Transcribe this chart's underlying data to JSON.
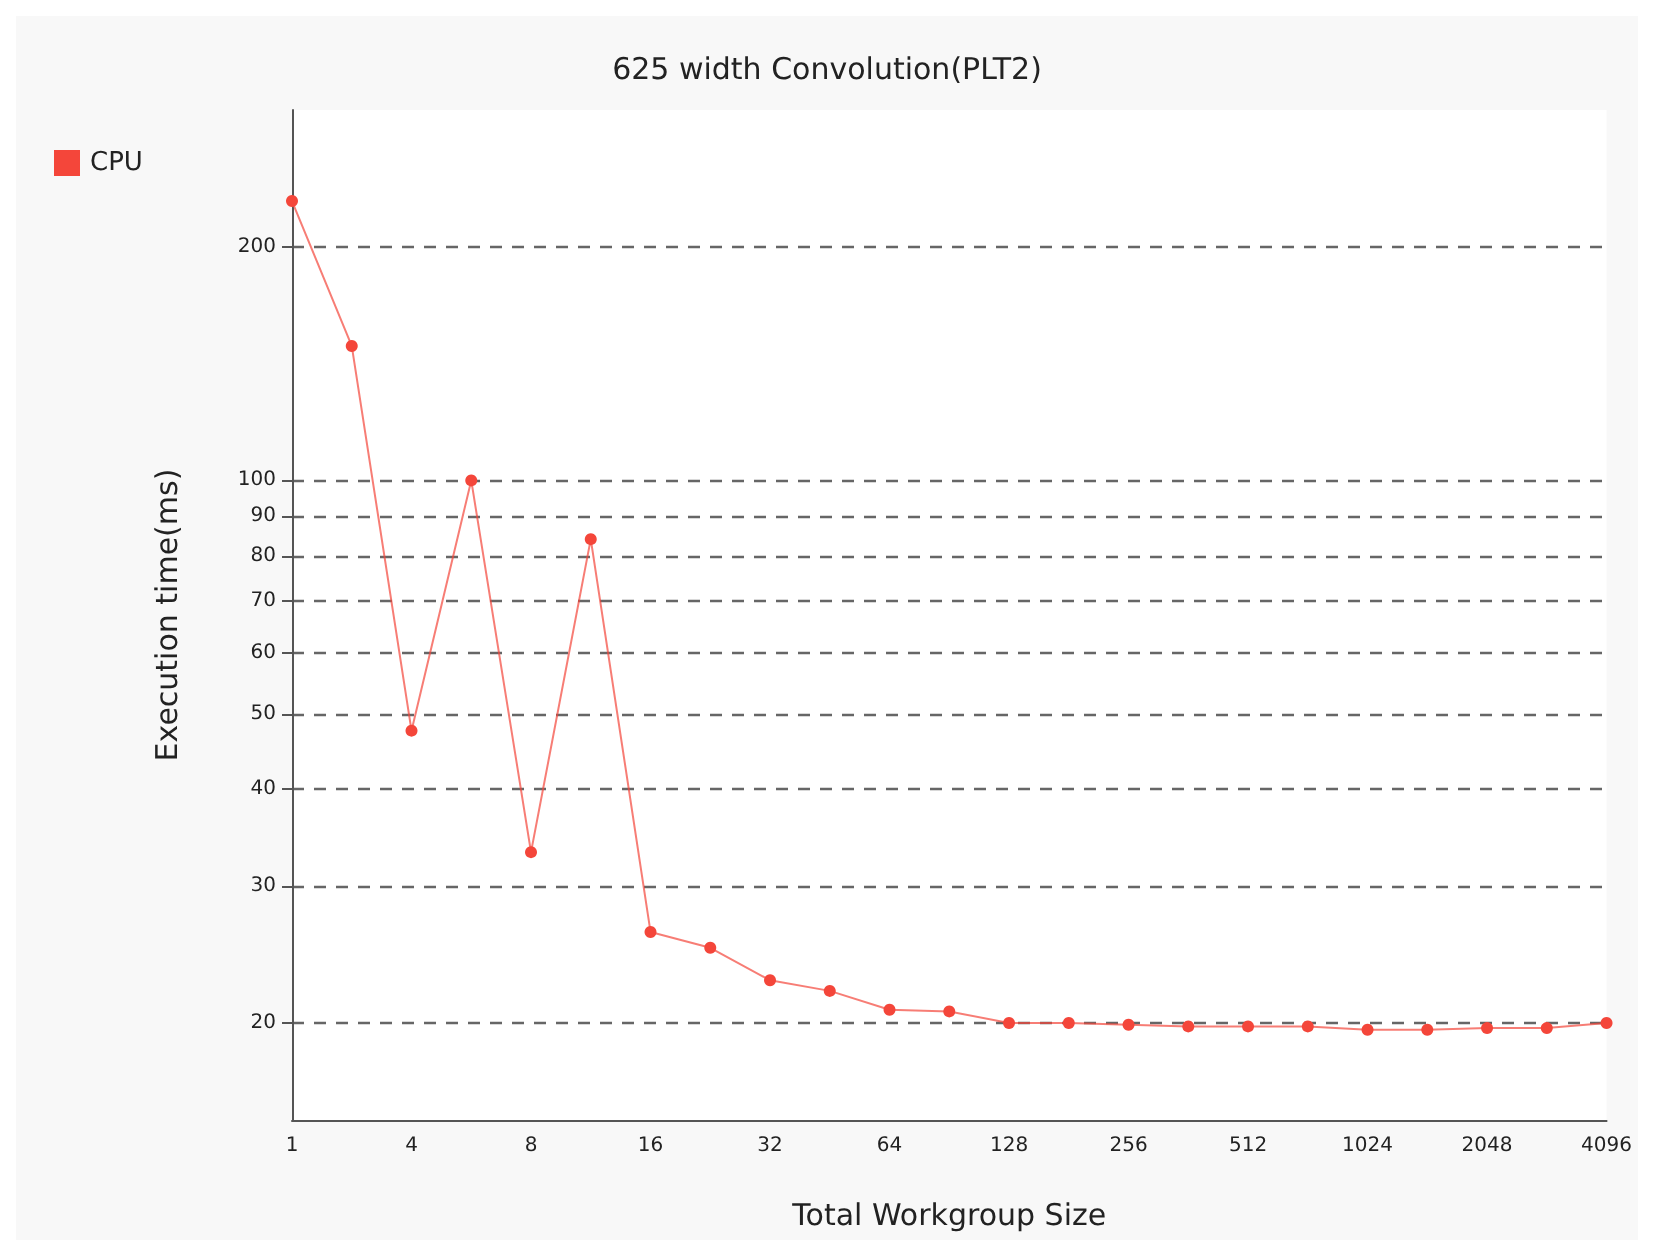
{
  "chart_data": {
    "type": "line",
    "title": "625 width Convolution(PLT2)",
    "xlabel": "Total Workgroup Size",
    "ylabel": "Execution time(ms)",
    "categories": [
      "1",
      null,
      "4",
      null,
      "8",
      null,
      "16",
      null,
      "32",
      null,
      "64",
      null,
      "128",
      null,
      "256",
      null,
      "512",
      null,
      "1024",
      null,
      "2048",
      null,
      "4096"
    ],
    "series": [
      {
        "name": "CPU",
        "color": "#f4463a",
        "values": [
          229,
          149,
          47.6,
          100,
          33.2,
          84,
          26.2,
          25.0,
          22.7,
          22.0,
          20.8,
          20.7,
          20.0,
          20.0,
          19.9,
          19.8,
          19.8,
          19.8,
          19.6,
          19.6,
          19.7,
          19.7,
          20.0
        ]
      }
    ],
    "log": "y",
    "ylim": [
      15,
      300
    ],
    "yticks": [
      20,
      30,
      40,
      50,
      60,
      70,
      80,
      90,
      100,
      200
    ],
    "grid": "y",
    "legend": "top left",
    "marker": "circle",
    "line_style": "solid"
  }
}
